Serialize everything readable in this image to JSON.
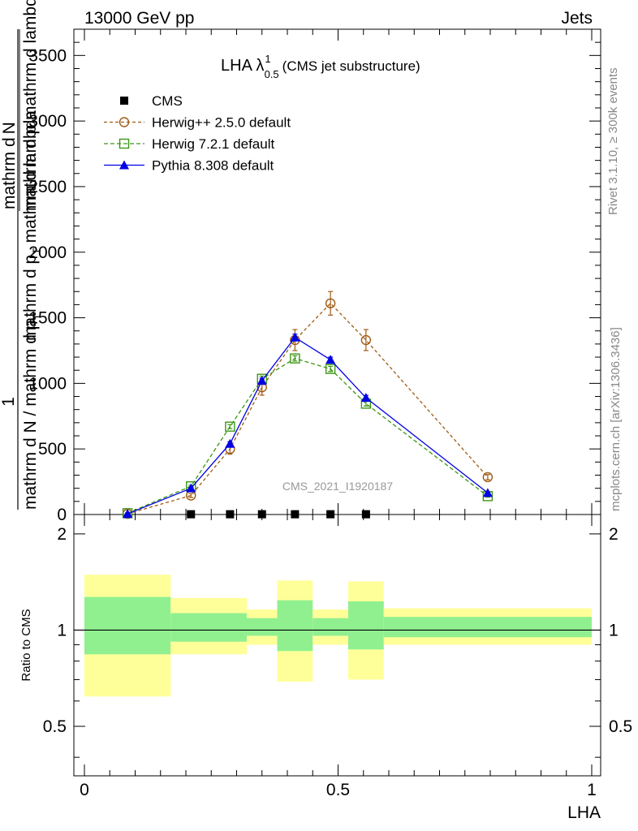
{
  "header": {
    "energy_label": "13000 GeV pp",
    "category_label": "Jets"
  },
  "side_labels": {
    "rivet": "Rivet 3.1.10, ≥ 300k events",
    "mcplots": "mcplots.cern.ch [arXiv:1306.3436]"
  },
  "plot_title": {
    "main": "LHA λ",
    "sup": "1",
    "sub": "0.5",
    "suffix": "(CMS jet substructure)"
  },
  "analysis_id": "CMS_2021_I1920187",
  "y_label": {
    "numerator": "1",
    "line1": "mathrm d N / mathrm d p",
    "line1_sub": "T",
    "fraction_top": "mathrm d",
    "fraction_top2": "N",
    "overlap": "mathrm d p mathrm d lambda",
    "overlap2": "mathrm d p",
    "overlap2_sub": "T",
    "overlap2_tail": " mathrm d lambda"
  },
  "ratio_label": "Ratio to CMS",
  "x_label": "LHA",
  "colors": {
    "cms": "#000000",
    "herwigpp": "#a05a14",
    "herwig7": "#3c9614",
    "pythia": "#0000e6",
    "band_inner": "#90f090",
    "band_outer": "#ffff99"
  },
  "chart_data": {
    "type": "line",
    "title": "LHA λ^1_0.5 (CMS jet substructure)",
    "xlabel": "LHA",
    "xlim": [
      0,
      1
    ],
    "main_ylim": [
      0,
      3700
    ],
    "main_yticks": [
      {
        "v": 0,
        "label": "0"
      },
      {
        "v": 500,
        "label": "500"
      },
      {
        "v": 1000,
        "label": "1000"
      },
      {
        "v": 1500,
        "label": "1500"
      },
      {
        "v": 2000,
        "label": "2000"
      },
      {
        "v": 2500,
        "label": "2500"
      },
      {
        "v": 3000,
        "label": "3000"
      },
      {
        "v": 3500,
        "label": "3500"
      }
    ],
    "ratio_ylim": [
      0.35,
      2.3
    ],
    "ratio_yticks": [
      {
        "v": 0.5,
        "label": "0.5"
      },
      {
        "v": 1,
        "label": "1"
      },
      {
        "v": 2,
        "label": "2"
      }
    ],
    "xticks": [
      {
        "v": 0,
        "label": "0"
      },
      {
        "v": 0.5,
        "label": "0.5"
      },
      {
        "v": 1,
        "label": "1"
      }
    ],
    "legend_position": "top-left",
    "series": [
      {
        "name": "CMS",
        "style": "cms",
        "x": [
          0.21,
          0.287,
          0.35,
          0.415,
          0.485,
          0.555
        ],
        "y": [
          2,
          2,
          2,
          2,
          2,
          2
        ]
      },
      {
        "name": "Herwig++ 2.5.0 default",
        "style": "herwigpp",
        "x": [
          0.085,
          0.21,
          0.287,
          0.35,
          0.415,
          0.485,
          0.555,
          0.795
        ],
        "y": [
          5,
          145,
          500,
          970,
          1330,
          1610,
          1330,
          285
        ],
        "err": [
          4,
          15,
          40,
          60,
          80,
          90,
          80,
          20
        ]
      },
      {
        "name": "Herwig 7.2.1 default",
        "style": "herwig7",
        "x": [
          0.085,
          0.21,
          0.287,
          0.35,
          0.415,
          0.485,
          0.555,
          0.795
        ],
        "y": [
          10,
          215,
          670,
          1035,
          1190,
          1110,
          845,
          140
        ],
        "err": [
          3,
          8,
          15,
          20,
          20,
          20,
          18,
          8
        ]
      },
      {
        "name": "Pythia 8.308 default",
        "style": "pythia",
        "x": [
          0.085,
          0.21,
          0.287,
          0.35,
          0.415,
          0.485,
          0.555,
          0.795
        ],
        "y": [
          5,
          200,
          540,
          1020,
          1350,
          1180,
          890,
          165
        ],
        "err": [
          3,
          8,
          15,
          20,
          25,
          20,
          18,
          8
        ]
      }
    ],
    "ratio_bands": [
      {
        "x0": 0,
        "x1": 0.17,
        "inner": [
          0.84,
          1.27
        ],
        "outer": [
          0.62,
          1.49
        ]
      },
      {
        "x0": 0.17,
        "x1": 0.32,
        "inner": [
          0.92,
          1.13
        ],
        "outer": [
          0.84,
          1.26
        ]
      },
      {
        "x0": 0.32,
        "x1": 0.38,
        "inner": [
          0.96,
          1.09
        ],
        "outer": [
          0.9,
          1.16
        ]
      },
      {
        "x0": 0.38,
        "x1": 0.45,
        "inner": [
          0.86,
          1.24
        ],
        "outer": [
          0.69,
          1.43
        ]
      },
      {
        "x0": 0.45,
        "x1": 0.52,
        "inner": [
          0.96,
          1.09
        ],
        "outer": [
          0.9,
          1.16
        ]
      },
      {
        "x0": 0.52,
        "x1": 0.59,
        "inner": [
          0.87,
          1.23
        ],
        "outer": [
          0.7,
          1.42
        ]
      },
      {
        "x0": 0.59,
        "x1": 1.0,
        "inner": [
          0.95,
          1.1
        ],
        "outer": [
          0.9,
          1.17
        ]
      }
    ]
  }
}
